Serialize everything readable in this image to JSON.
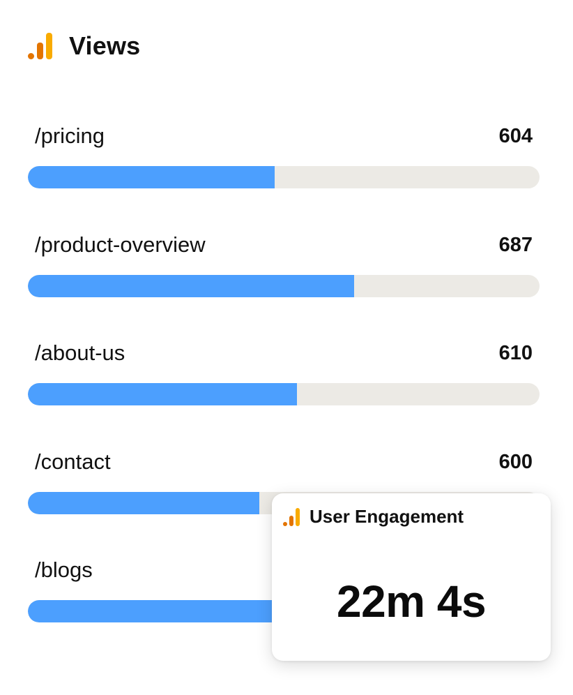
{
  "colors": {
    "bar_fill": "#4c9ffe",
    "bar_track": "#eceae5",
    "icon_primary": "#e37400",
    "icon_secondary": "#f9ab00"
  },
  "header": {
    "icon": "analytics-bars-icon",
    "title": "Views"
  },
  "rows": [
    {
      "path": "/pricing",
      "value": "604",
      "fill_fraction": 0.482
    },
    {
      "path": "/product-overview",
      "value": "687",
      "fill_fraction": 0.638
    },
    {
      "path": "/about-us",
      "value": "610",
      "fill_fraction": 0.526
    },
    {
      "path": "/contact",
      "value": "600",
      "fill_fraction": 0.452
    },
    {
      "path": "/blogs",
      "value": "",
      "fill_fraction": 0.53
    }
  ],
  "popup": {
    "icon": "analytics-bars-icon",
    "title": "User Engagement",
    "metric": "22m 4s"
  }
}
